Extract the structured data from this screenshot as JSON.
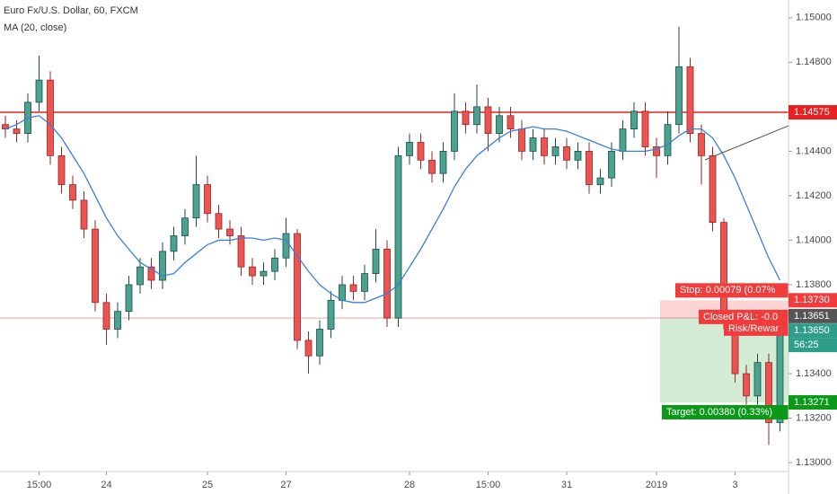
{
  "chart_data": {
    "type": "candlestick",
    "title": "Euro Fx/U.S. Dollar, 60, FXCM",
    "indicator": {
      "name": "MA (20, close)",
      "color": "#3b7fd4",
      "values": [
        1.145,
        1.1452,
        1.1455,
        1.1456,
        1.1452,
        1.1446,
        1.1438,
        1.143,
        1.142,
        1.141,
        1.1402,
        1.1396,
        1.139,
        1.1387,
        1.1384,
        1.1385,
        1.139,
        1.1394,
        1.1398,
        1.14,
        1.14,
        1.1401,
        1.1401,
        1.14,
        1.1401,
        1.14,
        1.1393,
        1.1386,
        1.138,
        1.1376,
        1.1373,
        1.1372,
        1.1372,
        1.1374,
        1.1376,
        1.138,
        1.1388,
        1.1396,
        1.1405,
        1.1414,
        1.1424,
        1.1432,
        1.1438,
        1.1442,
        1.1446,
        1.1449,
        1.145,
        1.1451,
        1.145,
        1.145,
        1.1449,
        1.1447,
        1.1445,
        1.1443,
        1.1441,
        1.144,
        1.144,
        1.144,
        1.1441,
        1.1443,
        1.1447,
        1.145,
        1.145,
        1.1446,
        1.1438,
        1.1428,
        1.1416,
        1.1404,
        1.1392,
        1.1382
      ]
    },
    "categories": [
      null,
      null,
      null,
      "15:00",
      null,
      null,
      null,
      null,
      null,
      "24",
      null,
      null,
      null,
      null,
      null,
      null,
      null,
      null,
      "25",
      null,
      null,
      null,
      null,
      null,
      null,
      "27",
      null,
      null,
      null,
      null,
      null,
      null,
      null,
      null,
      null,
      null,
      "28",
      null,
      null,
      null,
      null,
      null,
      null,
      "15:00",
      null,
      null,
      null,
      null,
      null,
      null,
      "31",
      null,
      null,
      null,
      null,
      null,
      null,
      null,
      "2019",
      null,
      null,
      null,
      null,
      null,
      null,
      "3",
      null,
      null,
      null,
      null
    ],
    "open": [
      1.1452,
      1.145,
      1.1448,
      1.1462,
      1.1472,
      1.1438,
      1.1425,
      1.1418,
      1.1405,
      1.1372,
      1.136,
      1.1368,
      1.138,
      1.1388,
      1.1382,
      1.1395,
      1.1402,
      1.141,
      1.1425,
      1.1412,
      1.1405,
      1.1402,
      1.1388,
      1.1384,
      1.1386,
      1.1392,
      1.1403,
      1.1355,
      1.1348,
      1.136,
      1.1373,
      1.138,
      1.1377,
      1.1385,
      1.1396,
      1.1365,
      1.1438,
      1.1444,
      1.1436,
      1.143,
      1.144,
      1.1458,
      1.1452,
      1.146,
      1.1448,
      1.1456,
      1.145,
      1.144,
      1.1446,
      1.1438,
      1.1442,
      1.1436,
      1.144,
      1.1425,
      1.1428,
      1.144,
      1.145,
      1.1458,
      1.1442,
      1.1438,
      1.1452,
      1.1478,
      1.1448,
      1.1438,
      1.1408,
      1.1364,
      1.134,
      1.133,
      1.1345,
      1.1318
    ],
    "high": [
      1.1456,
      1.1454,
      1.1466,
      1.1483,
      1.1476,
      1.1442,
      1.1429,
      1.1422,
      1.1409,
      1.1376,
      1.1372,
      1.1384,
      1.1392,
      1.1392,
      1.1399,
      1.1406,
      1.1414,
      1.1438,
      1.1429,
      1.1416,
      1.1409,
      1.1406,
      1.1392,
      1.139,
      1.1396,
      1.141,
      1.1405,
      1.1359,
      1.1364,
      1.1377,
      1.1384,
      1.1384,
      1.1389,
      1.1405,
      1.14,
      1.1442,
      1.1448,
      1.1448,
      1.144,
      1.1444,
      1.1466,
      1.1462,
      1.147,
      1.1464,
      1.146,
      1.146,
      1.1454,
      1.145,
      1.145,
      1.1446,
      1.1446,
      1.1444,
      1.1444,
      1.1432,
      1.1444,
      1.1454,
      1.1462,
      1.1462,
      1.1446,
      1.1458,
      1.1496,
      1.1482,
      1.1452,
      1.1442,
      1.141,
      1.1368,
      1.1344,
      1.1349,
      1.1349,
      1.1366
    ],
    "low": [
      1.1446,
      1.1444,
      1.1444,
      1.1458,
      1.1434,
      1.1421,
      1.1414,
      1.1401,
      1.1368,
      1.1353,
      1.1356,
      1.1364,
      1.1376,
      1.1378,
      1.1378,
      1.1391,
      1.1398,
      1.1406,
      1.1408,
      1.1401,
      1.1398,
      1.1384,
      1.138,
      1.138,
      1.1382,
      1.1388,
      1.1351,
      1.134,
      1.1344,
      1.1356,
      1.1369,
      1.1373,
      1.1373,
      1.1381,
      1.1361,
      1.1361,
      1.1434,
      1.1432,
      1.1426,
      1.1426,
      1.1436,
      1.1448,
      1.1448,
      1.144,
      1.1444,
      1.1446,
      1.1436,
      1.1436,
      1.1434,
      1.1434,
      1.1432,
      1.1432,
      1.1421,
      1.1421,
      1.1424,
      1.1436,
      1.1446,
      1.1438,
      1.1428,
      1.1434,
      1.1448,
      1.1444,
      1.1425,
      1.1404,
      1.136,
      1.1336,
      1.1326,
      1.1326,
      1.1308,
      1.1314
    ],
    "close": [
      1.145,
      1.1448,
      1.1462,
      1.1472,
      1.1438,
      1.1425,
      1.1418,
      1.1405,
      1.1372,
      1.136,
      1.1368,
      1.138,
      1.1388,
      1.1382,
      1.1395,
      1.1402,
      1.141,
      1.1425,
      1.1412,
      1.1405,
      1.1402,
      1.1388,
      1.1384,
      1.1386,
      1.1392,
      1.1403,
      1.1355,
      1.1348,
      1.136,
      1.1373,
      1.138,
      1.1377,
      1.1385,
      1.1396,
      1.1365,
      1.1438,
      1.1444,
      1.1436,
      1.143,
      1.144,
      1.1458,
      1.1452,
      1.146,
      1.1448,
      1.1456,
      1.145,
      1.144,
      1.1446,
      1.1438,
      1.1442,
      1.1436,
      1.144,
      1.1425,
      1.1428,
      1.144,
      1.145,
      1.1458,
      1.1442,
      1.1438,
      1.1452,
      1.1478,
      1.1448,
      1.1438,
      1.1408,
      1.1364,
      1.134,
      1.133,
      1.1345,
      1.1318,
      1.1362
    ],
    "up_color": "#4aa391",
    "down_color": "#ef5350",
    "ylim": [
      1.1296,
      1.1508
    ],
    "yticks": [
      {
        "value": 1.15,
        "label": "1.15000"
      },
      {
        "value": 1.148,
        "label": "1.14800"
      },
      {
        "value": 1.144,
        "label": "1.14400"
      },
      {
        "value": 1.142,
        "label": "1.14200"
      },
      {
        "value": 1.14,
        "label": "1.14000"
      },
      {
        "value": 1.138,
        "label": "1.13800"
      },
      {
        "value": 1.134,
        "label": "1.13400"
      },
      {
        "value": 1.132,
        "label": "1.13200"
      },
      {
        "value": 1.13,
        "label": "1.13000"
      }
    ],
    "price_line": {
      "value": 1.14575,
      "label": "1.14575",
      "color": "#e8201f"
    },
    "last_price": {
      "value": 1.1365,
      "label": "1.13650",
      "countdown": "56:25",
      "color": "#2e9e8a"
    },
    "position": {
      "stop": {
        "value": 1.1373,
        "label": "1.13730",
        "text": "Stop: 0.00079 (0.07%",
        "color": "#f23b3b"
      },
      "entry": {
        "value": 1.13651,
        "label": "1.13651",
        "color": "#555555"
      },
      "target": {
        "value": 1.13271,
        "label": "1.13271",
        "text": "Target: 0.00380 (0.33%)",
        "color": "#0b9a18"
      },
      "pnl_text": "Closed P&L: -0.0",
      "rr_text": "Risk/Rewar"
    }
  }
}
